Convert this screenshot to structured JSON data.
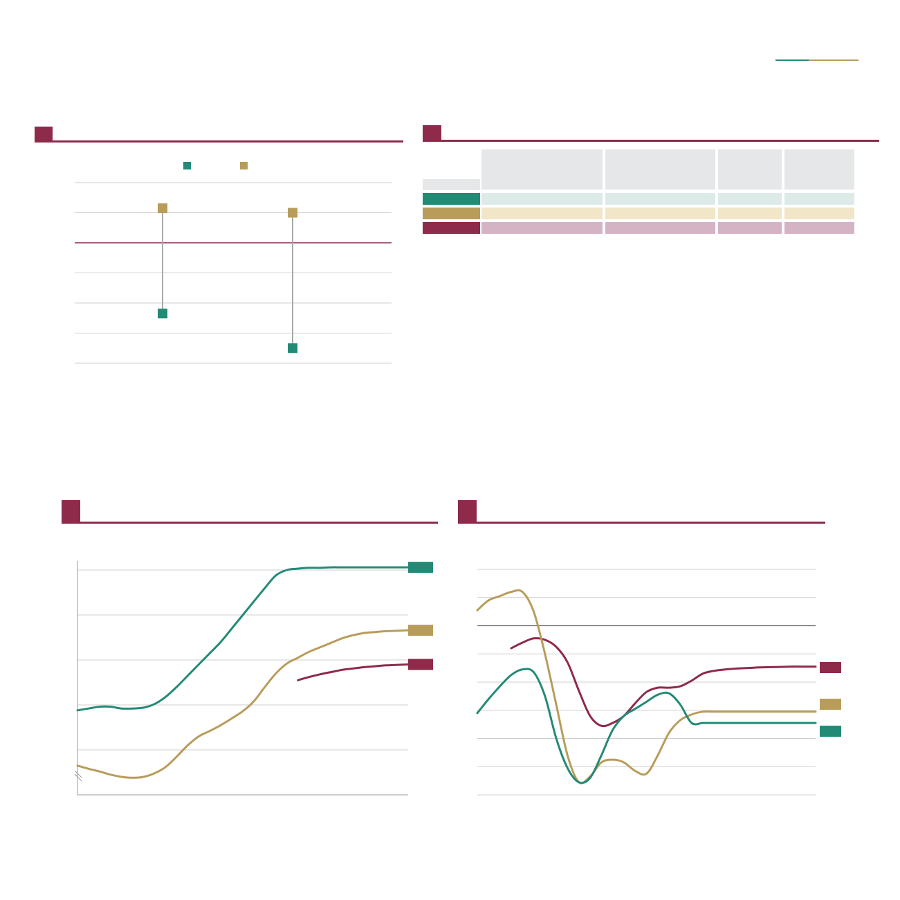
{
  "colors": {
    "maroon": "#8e2a4a",
    "teal": "#238a76",
    "gold": "#b89c5a",
    "grid": "#cfcfcf",
    "header_gray": "#e6e7e8",
    "teal_light": "#dcebe7",
    "gold_light": "#f2e6c8",
    "maroon_light": "#d4b3c5"
  },
  "header": {
    "accent_rule": [
      "#238a76",
      "#b89c5a"
    ]
  },
  "chart_data": [
    {
      "type": "dumbbell",
      "panel": "top-left",
      "legend_placement": "top-center",
      "series": [
        {
          "color": "#238a76"
        },
        {
          "color": "#b89c5a"
        }
      ],
      "ylim": [
        -4,
        2
      ],
      "reference_line": 0,
      "grid": true,
      "groups": [
        {
          "low": -2.35,
          "high": 1.15
        },
        {
          "low": -3.5,
          "high": 1.0
        }
      ]
    },
    {
      "type": "table",
      "panel": "top-right",
      "columns": 4,
      "rows": [
        {
          "color": "#238a76",
          "fill": "#dcebe7"
        },
        {
          "color": "#b89c5a",
          "fill": "#f2e6c8"
        },
        {
          "color": "#8e2a4a",
          "fill": "#d4b3c5"
        }
      ]
    },
    {
      "type": "line",
      "panel": "bottom-left",
      "x": [
        0,
        2,
        4,
        6,
        8,
        10,
        12,
        14,
        16,
        18,
        20,
        22,
        24,
        26,
        28,
        30,
        32,
        34,
        36,
        38,
        40,
        42,
        44,
        46,
        48,
        50,
        52,
        54,
        56,
        58,
        60
      ],
      "ylim": [
        0,
        5
      ],
      "axis_break": true,
      "grid": true,
      "series": [
        {
          "color": "#238a76",
          "label_position": "end",
          "values": [
            1.88,
            1.92,
            1.96,
            1.96,
            1.92,
            1.92,
            1.94,
            2.02,
            2.18,
            2.4,
            2.65,
            2.9,
            3.15,
            3.4,
            3.7,
            4.0,
            4.3,
            4.6,
            4.88,
            5.0,
            5.03,
            5.05,
            5.05,
            5.06,
            5.06,
            5.06,
            5.06,
            5.06,
            5.06,
            5.06,
            5.06
          ]
        },
        {
          "color": "#b89c5a",
          "label_position": "end",
          "values": [
            0.65,
            0.58,
            0.52,
            0.45,
            0.4,
            0.38,
            0.4,
            0.48,
            0.62,
            0.85,
            1.1,
            1.3,
            1.42,
            1.55,
            1.7,
            1.86,
            2.08,
            2.4,
            2.7,
            2.92,
            3.05,
            3.18,
            3.28,
            3.38,
            3.48,
            3.55,
            3.6,
            3.62,
            3.64,
            3.65,
            3.66
          ]
        },
        {
          "color": "#8e2a4a",
          "label_position": "end",
          "x": [
            40,
            42,
            44,
            46,
            48,
            50,
            52,
            54,
            56,
            58,
            60
          ],
          "values": [
            2.55,
            2.62,
            2.68,
            2.73,
            2.78,
            2.81,
            2.84,
            2.86,
            2.88,
            2.89,
            2.9
          ]
        }
      ]
    },
    {
      "type": "line",
      "panel": "bottom-right",
      "x": [
        0,
        2,
        4,
        6,
        8,
        10,
        12,
        14,
        16,
        18,
        20,
        22,
        24,
        26,
        28,
        30,
        32,
        34,
        36,
        38,
        40,
        42,
        44,
        46,
        48,
        50,
        52,
        54,
        56,
        58,
        60
      ],
      "ylim": [
        -6,
        2
      ],
      "reference_line": 0,
      "grid": true,
      "series": [
        {
          "color": "#8e2a4a",
          "label_position": "end",
          "x": [
            6,
            8,
            10,
            12,
            14,
            16,
            18,
            20,
            22,
            24,
            26,
            28,
            30,
            32,
            34,
            36,
            38,
            40,
            42,
            44,
            46,
            48,
            50,
            52,
            54,
            56,
            58,
            60
          ],
          "values": [
            -0.8,
            -0.6,
            -0.45,
            -0.5,
            -0.75,
            -1.3,
            -2.3,
            -3.2,
            -3.55,
            -3.45,
            -3.2,
            -2.75,
            -2.35,
            -2.2,
            -2.2,
            -2.15,
            -1.95,
            -1.7,
            -1.6,
            -1.55,
            -1.52,
            -1.5,
            -1.48,
            -1.47,
            -1.46,
            -1.45,
            -1.45,
            -1.45
          ]
        },
        {
          "color": "#b89c5a",
          "label_position": "end",
          "values": [
            0.55,
            0.9,
            1.05,
            1.2,
            1.2,
            0.5,
            -1.0,
            -2.8,
            -4.6,
            -5.55,
            -5.35,
            -4.85,
            -4.75,
            -4.85,
            -5.15,
            -5.25,
            -4.6,
            -3.8,
            -3.35,
            -3.15,
            -3.05,
            -3.05,
            -3.05,
            -3.05,
            -3.05,
            -3.05,
            -3.05,
            -3.05,
            -3.05,
            -3.05,
            -3.05
          ]
        },
        {
          "color": "#238a76",
          "label_position": "end",
          "values": [
            -3.1,
            -2.6,
            -2.15,
            -1.75,
            -1.55,
            -1.65,
            -2.5,
            -4.0,
            -5.05,
            -5.55,
            -5.4,
            -4.6,
            -3.7,
            -3.2,
            -2.95,
            -2.7,
            -2.45,
            -2.4,
            -2.8,
            -3.45,
            -3.45,
            -3.45,
            -3.45,
            -3.45,
            -3.45,
            -3.45,
            -3.45,
            -3.45,
            -3.45,
            -3.45,
            -3.45
          ]
        }
      ]
    }
  ]
}
